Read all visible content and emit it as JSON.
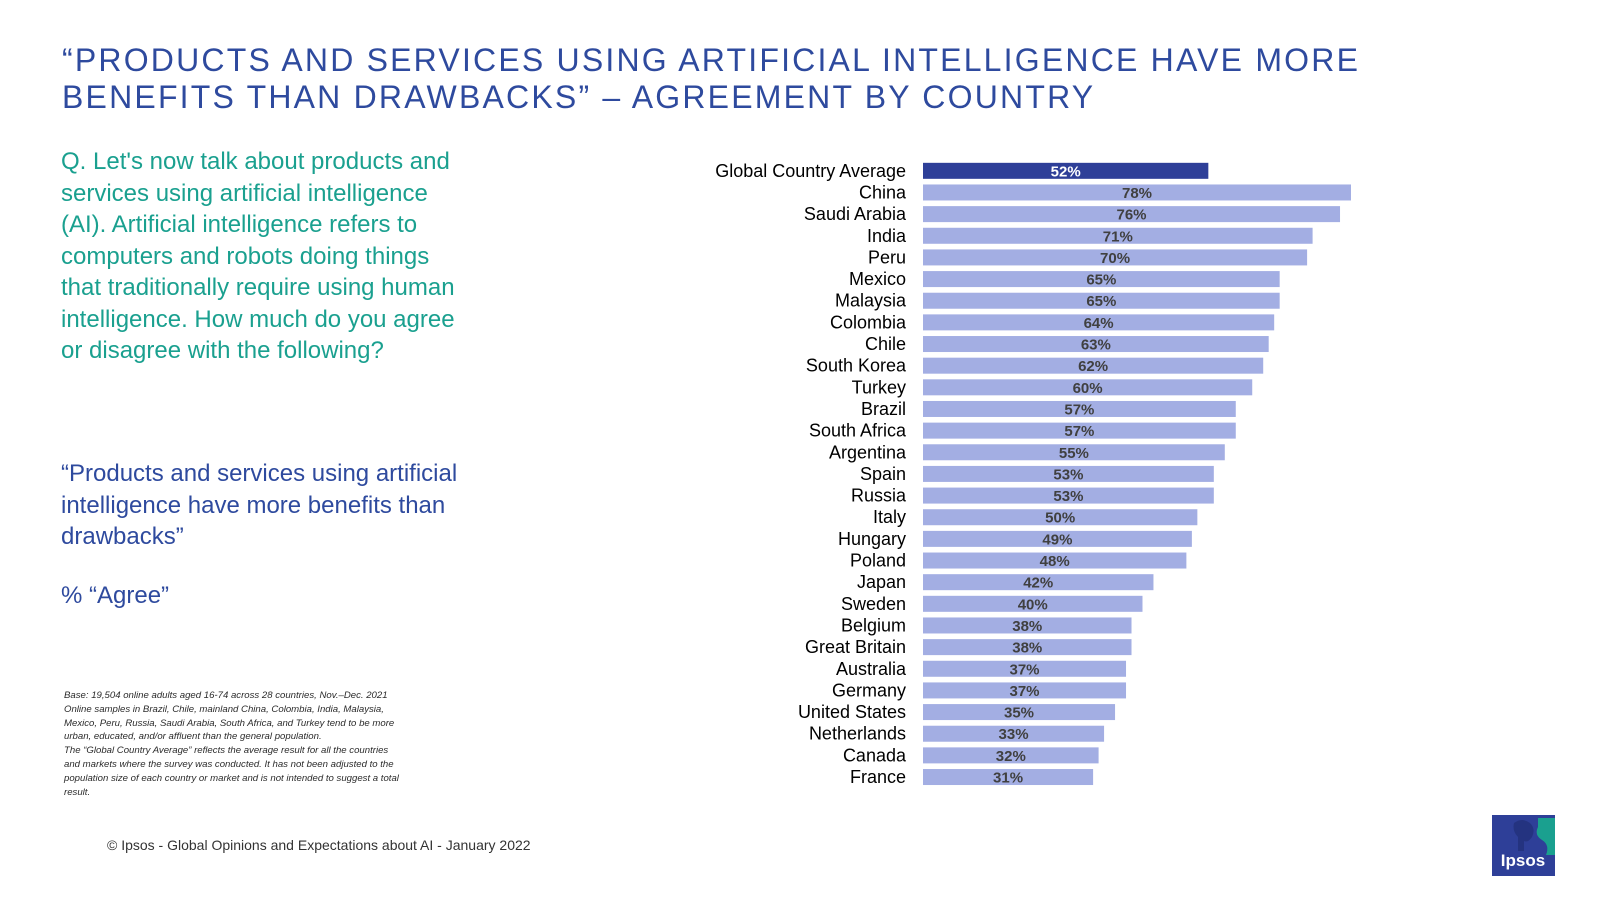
{
  "title_lines": [
    "“PRODUCTS AND SERVICES USING ARTIFICIAL INTELLIGENCE HAVE MORE",
    "BENEFITS THAN DRAWBACKS” – AGREEMENT BY COUNTRY"
  ],
  "question": "Q. Let's now talk about products and services using artificial intelligence (AI). Artificial intelligence refers to computers and robots doing things that traditionally require using human intelligence. How much do you agree or disagree with the following?",
  "statement": "“Products and services using artificial intelligence have more benefits than drawbacks”",
  "metric": "% “Agree”",
  "base_note_lines": [
    "Base: 19,504 online adults aged 16-74 across 28 countries, Nov.–Dec. 2021",
    "Online samples in Brazil, Chile, mainland China, Colombia, India, Malaysia,",
    "Mexico, Peru, Russia, Saudi Arabia, South Africa, and Turkey tend to be more",
    "urban, educated, and/or affluent than the general population.",
    "The “Global  Country Average” reflects the average result for all the countries",
    "and markets where the survey was conducted. It has not been adjusted to the",
    "population size of each country or market and is not intended to suggest a total",
    "result."
  ],
  "copyright": "© Ipsos - Global Opinions and Expectations about AI - January 2022",
  "logo_text": "Ipsos",
  "colors": {
    "title": "#2e4a9e",
    "question": "#1aa08f",
    "highlight_bar": "#2e3f98",
    "bar": "#a3aee3",
    "logo_bg": "#2e3f98",
    "logo_accent": "#1aa08f"
  },
  "chart_data": {
    "type": "bar",
    "orientation": "horizontal",
    "categories": [
      "Global Country Average",
      "China",
      "Saudi Arabia",
      "India",
      "Peru",
      "Mexico",
      "Malaysia",
      "Colombia",
      "Chile",
      "South Korea",
      "Turkey",
      "Brazil",
      "South Africa",
      "Argentina",
      "Spain",
      "Russia",
      "Italy",
      "Hungary",
      "Poland",
      "Japan",
      "Sweden",
      "Belgium",
      "Great Britain",
      "Australia",
      "Germany",
      "United States",
      "Netherlands",
      "Canada",
      "France"
    ],
    "values": [
      52,
      78,
      76,
      71,
      70,
      65,
      65,
      64,
      63,
      62,
      60,
      57,
      57,
      55,
      53,
      53,
      50,
      49,
      48,
      42,
      40,
      38,
      38,
      37,
      37,
      35,
      33,
      32,
      31
    ],
    "labels": [
      "52%",
      "78%",
      "76%",
      "71%",
      "70%",
      "65%",
      "65%",
      "64%",
      "63%",
      "62%",
      "60%",
      "57%",
      "57%",
      "55%",
      "53%",
      "53%",
      "50%",
      "49%",
      "48%",
      "42%",
      "40%",
      "38%",
      "38%",
      "37%",
      "37%",
      "35%",
      "33%",
      "32%",
      "31%"
    ],
    "highlight_index": 0,
    "unit": "%",
    "grid": false,
    "legend": "none"
  }
}
